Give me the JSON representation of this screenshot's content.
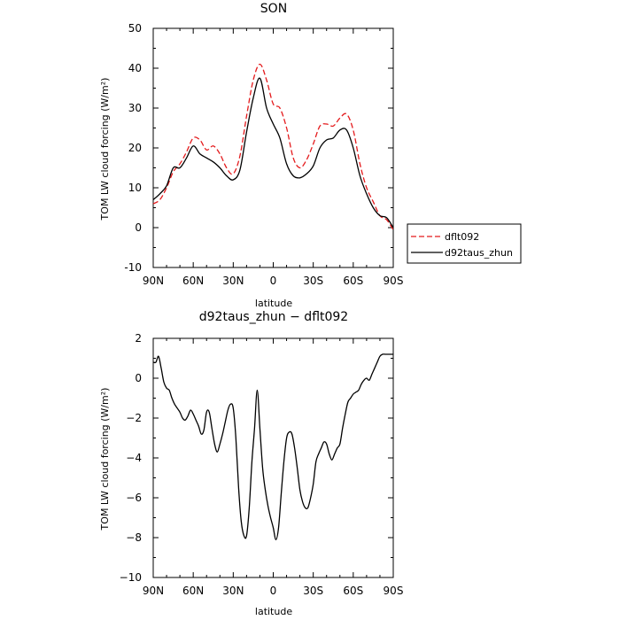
{
  "chart_data": [
    {
      "type": "line",
      "title": "SON",
      "xlabel": "latitude",
      "ylabel": "TOM LW cloud forcing (W/m²)",
      "xlim": [
        90,
        -90
      ],
      "ylim": [
        -10,
        50
      ],
      "x_ticks": [
        90,
        60,
        30,
        0,
        -30,
        -60,
        -90
      ],
      "x_tick_labels": [
        "90N",
        "60N",
        "30N",
        "0",
        "30S",
        "60S",
        "90S"
      ],
      "y_ticks": [
        -10,
        0,
        10,
        20,
        30,
        40,
        50
      ],
      "y_tick_labels": [
        "-10",
        "0",
        "10",
        "20",
        "30",
        "40",
        "50"
      ],
      "legend_position": "outside-right",
      "series": [
        {
          "name": "dflt092",
          "color": "#e41a1c",
          "style": "dashed",
          "x": [
            90,
            85,
            80,
            75,
            70,
            65,
            60,
            55,
            50,
            45,
            40,
            35,
            30,
            25,
            20,
            15,
            10,
            5,
            0,
            -5,
            -10,
            -15,
            -20,
            -25,
            -30,
            -35,
            -40,
            -45,
            -50,
            -55,
            -60,
            -65,
            -70,
            -75,
            -80,
            -85,
            -90
          ],
          "y": [
            6,
            7,
            10,
            14,
            16,
            19,
            22.5,
            22,
            19.5,
            20.5,
            18.5,
            15,
            13.5,
            18,
            28,
            37,
            41,
            37,
            31,
            30,
            25,
            17.5,
            15,
            17,
            21,
            25.5,
            26,
            25.5,
            27.5,
            28.5,
            24.5,
            16,
            10,
            6.5,
            3,
            2,
            -0.5
          ]
        },
        {
          "name": "d92taus_zhun",
          "color": "#000000",
          "style": "solid",
          "x": [
            90,
            85,
            80,
            75,
            70,
            65,
            60,
            55,
            50,
            45,
            40,
            35,
            30,
            25,
            20,
            15,
            10,
            5,
            0,
            -5,
            -10,
            -15,
            -20,
            -25,
            -30,
            -35,
            -40,
            -45,
            -50,
            -55,
            -60,
            -65,
            -70,
            -75,
            -80,
            -85,
            -90
          ],
          "y": [
            7,
            8.5,
            10.5,
            15,
            15,
            17.5,
            20.5,
            18.5,
            17.5,
            16.5,
            15,
            13,
            12,
            14.5,
            24,
            32.5,
            37.5,
            30,
            26,
            22.5,
            16,
            13,
            12.5,
            13.5,
            15.5,
            20,
            22,
            22.5,
            24.5,
            24.5,
            20,
            13,
            8.5,
            5,
            3,
            2.5,
            0
          ]
        }
      ]
    },
    {
      "type": "line",
      "title": "d92taus_zhun − dflt092",
      "xlabel": "latitude",
      "ylabel": "TOM LW cloud forcing (W/m²)",
      "xlim": [
        90,
        -90
      ],
      "ylim": [
        -10,
        2
      ],
      "x_ticks": [
        90,
        60,
        30,
        0,
        -30,
        -60,
        -90
      ],
      "x_tick_labels": [
        "90N",
        "60N",
        "30N",
        "0",
        "30S",
        "60S",
        "90S"
      ],
      "y_ticks": [
        -10,
        -8,
        -6,
        -4,
        -2,
        0,
        2
      ],
      "y_tick_labels": [
        "−10",
        "−8",
        "−6",
        "−4",
        "−2",
        "0",
        "2"
      ],
      "series": [
        {
          "color": "#000000",
          "style": "solid",
          "x": [
            90,
            88,
            86,
            84,
            82,
            80,
            78,
            76,
            74,
            72,
            70,
            68,
            66,
            64,
            62,
            60,
            58,
            56,
            54,
            52,
            50,
            48,
            46,
            44,
            42,
            40,
            38,
            36,
            34,
            32,
            30,
            28,
            26,
            24,
            22,
            20,
            18,
            16,
            14,
            12,
            10,
            8,
            6,
            4,
            2,
            0,
            -2,
            -4,
            -6,
            -8,
            -10,
            -12,
            -14,
            -16,
            -18,
            -20,
            -22,
            -24,
            -26,
            -28,
            -30,
            -32,
            -34,
            -36,
            -38,
            -40,
            -42,
            -44,
            -46,
            -48,
            -50,
            -52,
            -54,
            -56,
            -58,
            -60,
            -62,
            -64,
            -66,
            -68,
            -70,
            -72,
            -74,
            -76,
            -78,
            -80,
            -82,
            -84,
            -86,
            -88,
            -90
          ],
          "y": [
            0.8,
            0.8,
            1.1,
            0.5,
            -0.2,
            -0.5,
            -0.6,
            -1.0,
            -1.3,
            -1.5,
            -1.7,
            -2.0,
            -2.1,
            -1.9,
            -1.6,
            -1.8,
            -2.1,
            -2.4,
            -2.8,
            -2.6,
            -1.7,
            -1.7,
            -2.5,
            -3.3,
            -3.7,
            -3.3,
            -2.8,
            -2.2,
            -1.6,
            -1.3,
            -1.5,
            -3.0,
            -5.5,
            -7.2,
            -7.9,
            -7.9,
            -6.5,
            -4.2,
            -2.5,
            -0.6,
            -2.5,
            -4.5,
            -5.6,
            -6.4,
            -7.0,
            -7.5,
            -8.1,
            -7.5,
            -5.8,
            -4.2,
            -3.0,
            -2.7,
            -2.8,
            -3.5,
            -4.5,
            -5.6,
            -6.2,
            -6.5,
            -6.5,
            -6.0,
            -5.3,
            -4.2,
            -3.8,
            -3.5,
            -3.2,
            -3.3,
            -3.8,
            -4.1,
            -3.8,
            -3.5,
            -3.3,
            -2.5,
            -1.8,
            -1.2,
            -1.0,
            -0.8,
            -0.7,
            -0.6,
            -0.3,
            -0.1,
            0.0,
            -0.1,
            0.2,
            0.5,
            0.8,
            1.1,
            1.2,
            1.2,
            1.2,
            1.2,
            1.2
          ]
        }
      ]
    }
  ]
}
